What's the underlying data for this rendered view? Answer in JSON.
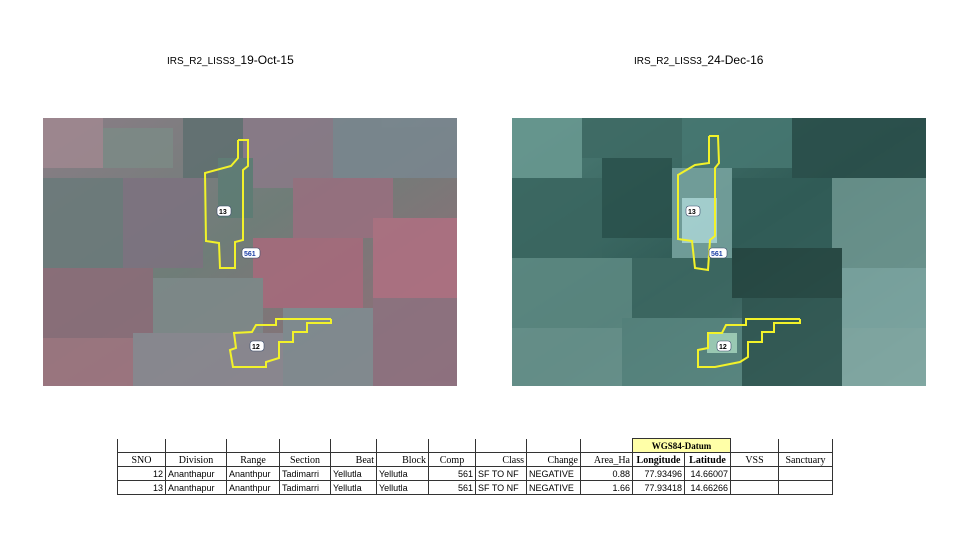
{
  "left_image": {
    "title_prefix": "IRS_R2_LISS3_",
    "title_date": "19-Oct-15"
  },
  "right_image": {
    "title_prefix": "IRS_R2_LISS3_",
    "title_date": "24-Dec-16"
  },
  "map_labels": {
    "compartment_13": "13",
    "compartment_12": "12",
    "comp_561": "561"
  },
  "table": {
    "wgs_header": "WGS84-Datum",
    "headers": {
      "sno": "SNO",
      "division": "Division",
      "range": "Range",
      "section": "Section",
      "beat": "Beat",
      "block": "Block",
      "comp": "Comp",
      "class": "Class",
      "change": "Change",
      "area": "Area_Ha",
      "longitude": "Longitude",
      "latitude": "Latitude",
      "vss": "VSS",
      "sanctuary": "Sanctuary"
    },
    "rows": [
      {
        "sno": "12",
        "division": "Ananthapur",
        "range": "Ananthpur",
        "section": "Tadimarri",
        "beat": "Yellutla",
        "block": "Yellutla",
        "comp": "561",
        "class": "SF TO NF",
        "change": "NEGATIVE",
        "area": "0.88",
        "longitude": "77.93496",
        "latitude": "14.66007",
        "vss": "",
        "sanctuary": ""
      },
      {
        "sno": "13",
        "division": "Ananthapur",
        "range": "Ananthpur",
        "section": "Tadimarri",
        "beat": "Yellutla",
        "block": "Yellutla",
        "comp": "561",
        "class": "SF TO NF",
        "change": "NEGATIVE",
        "area": "1.66",
        "longitude": "77.93418",
        "latitude": "14.66266",
        "vss": "",
        "sanctuary": ""
      }
    ]
  },
  "colors": {
    "polygon_outline": "#f2f22a",
    "wgs_header_bg": "#ffffa8"
  }
}
